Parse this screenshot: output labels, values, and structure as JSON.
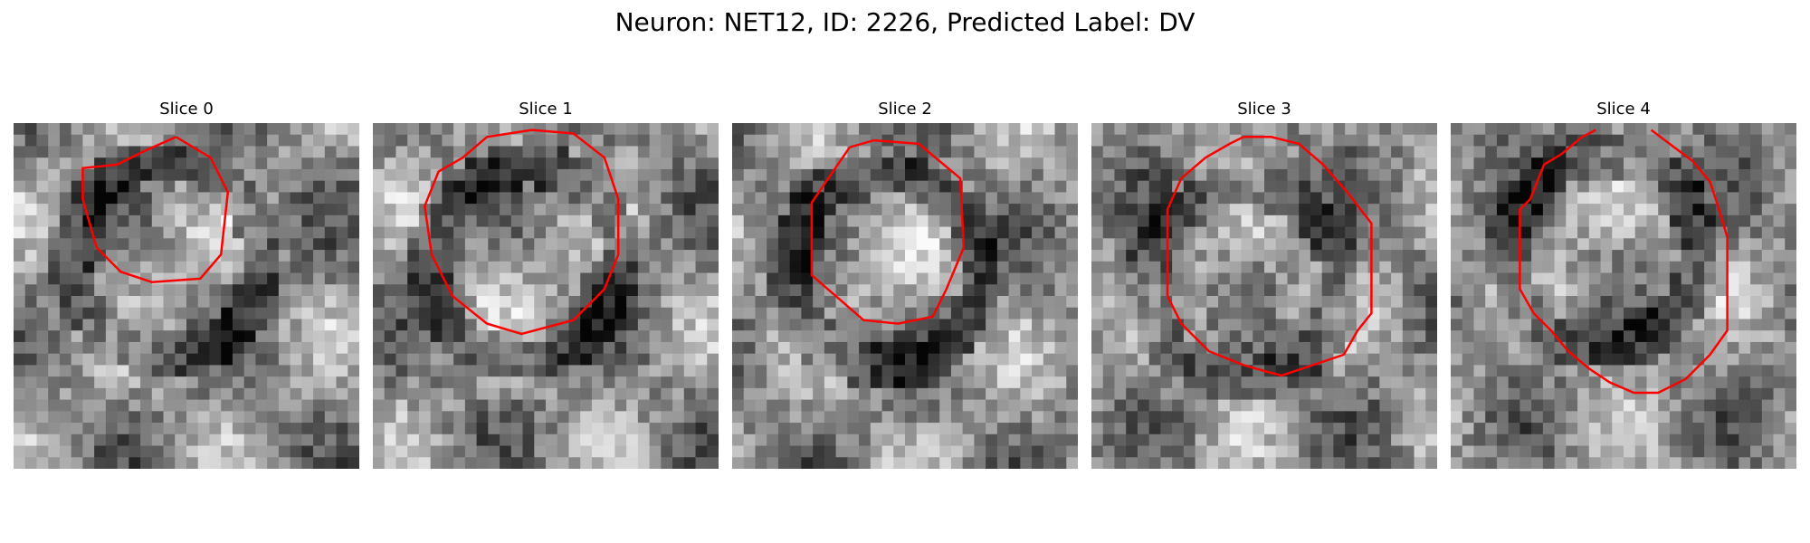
{
  "figure": {
    "title": "Neuron: NET12, ID: 2226, Predicted Label: DV",
    "contour_color": "#ff0000",
    "colormap": "gray"
  },
  "slices": [
    {
      "title": "Slice 0",
      "seed": 11,
      "contour": [
        [
          0.47,
          0.04
        ],
        [
          0.57,
          0.1
        ],
        [
          0.62,
          0.2
        ],
        [
          0.6,
          0.38
        ],
        [
          0.54,
          0.45
        ],
        [
          0.4,
          0.46
        ],
        [
          0.31,
          0.43
        ],
        [
          0.24,
          0.36
        ],
        [
          0.2,
          0.22
        ],
        [
          0.2,
          0.13
        ],
        [
          0.3,
          0.12
        ],
        [
          0.38,
          0.08
        ]
      ]
    },
    {
      "title": "Slice 1",
      "seed": 23,
      "contour": [
        [
          0.46,
          0.02
        ],
        [
          0.58,
          0.03
        ],
        [
          0.67,
          0.1
        ],
        [
          0.71,
          0.22
        ],
        [
          0.71,
          0.38
        ],
        [
          0.67,
          0.48
        ],
        [
          0.58,
          0.57
        ],
        [
          0.43,
          0.61
        ],
        [
          0.33,
          0.58
        ],
        [
          0.23,
          0.5
        ],
        [
          0.17,
          0.38
        ],
        [
          0.15,
          0.24
        ],
        [
          0.19,
          0.14
        ],
        [
          0.26,
          0.1
        ],
        [
          0.33,
          0.04
        ]
      ]
    },
    {
      "title": "Slice 2",
      "seed": 37,
      "contour": [
        [
          0.34,
          0.07
        ],
        [
          0.41,
          0.05
        ],
        [
          0.54,
          0.06
        ],
        [
          0.66,
          0.16
        ],
        [
          0.67,
          0.36
        ],
        [
          0.62,
          0.48
        ],
        [
          0.58,
          0.56
        ],
        [
          0.48,
          0.58
        ],
        [
          0.38,
          0.57
        ],
        [
          0.23,
          0.44
        ],
        [
          0.23,
          0.23
        ]
      ]
    },
    {
      "title": "Slice 3",
      "seed": 41,
      "contour": [
        [
          0.44,
          0.04
        ],
        [
          0.52,
          0.04
        ],
        [
          0.6,
          0.06
        ],
        [
          0.67,
          0.12
        ],
        [
          0.74,
          0.2
        ],
        [
          0.81,
          0.29
        ],
        [
          0.81,
          0.55
        ],
        [
          0.77,
          0.6
        ],
        [
          0.73,
          0.67
        ],
        [
          0.64,
          0.7
        ],
        [
          0.55,
          0.73
        ],
        [
          0.51,
          0.72
        ],
        [
          0.44,
          0.7
        ],
        [
          0.34,
          0.66
        ],
        [
          0.26,
          0.58
        ],
        [
          0.22,
          0.5
        ],
        [
          0.22,
          0.25
        ],
        [
          0.26,
          0.16
        ],
        [
          0.33,
          0.1
        ],
        [
          0.4,
          0.06
        ]
      ]
    },
    {
      "title": "Slice 4",
      "seed": 53,
      "contour": [
        [
          0.42,
          0.02
        ],
        [
          0.38,
          0.04
        ],
        [
          0.32,
          0.09
        ],
        [
          0.27,
          0.12
        ],
        [
          0.23,
          0.22
        ],
        [
          0.2,
          0.25
        ],
        [
          0.2,
          0.48
        ],
        [
          0.24,
          0.55
        ],
        [
          0.29,
          0.6
        ],
        [
          0.34,
          0.66
        ],
        [
          0.4,
          0.71
        ],
        [
          0.46,
          0.75
        ],
        [
          0.53,
          0.78
        ],
        [
          0.6,
          0.78
        ],
        [
          0.68,
          0.74
        ],
        [
          0.75,
          0.67
        ],
        [
          0.8,
          0.6
        ],
        [
          0.8,
          0.33
        ],
        [
          0.77,
          0.23
        ],
        [
          0.75,
          0.17
        ],
        [
          0.7,
          0.11
        ],
        [
          0.62,
          0.05
        ],
        [
          0.58,
          0.02
        ]
      ]
    }
  ]
}
